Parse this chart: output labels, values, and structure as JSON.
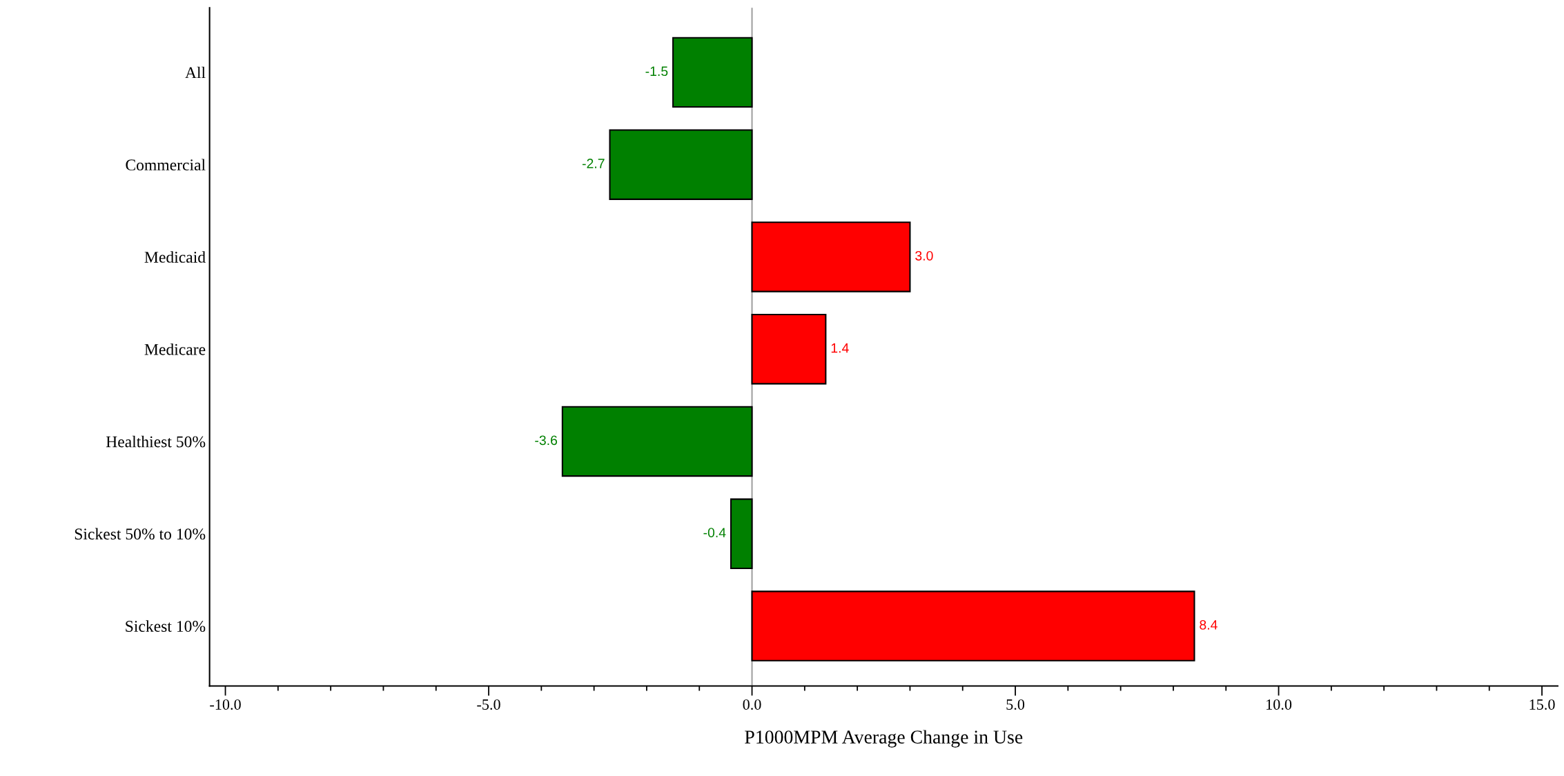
{
  "chart_data": {
    "type": "bar",
    "orientation": "horizontal",
    "xlabel": "P1000MPM Average Change in Use",
    "categories": [
      "All",
      "Commercial",
      "Medicaid",
      "Medicare",
      "Healthiest 50%",
      "Sickest 50% to 10%",
      "Sickest 10%"
    ],
    "values": [
      -1.5,
      -2.7,
      3.0,
      1.4,
      -3.6,
      -0.4,
      8.4
    ],
    "value_labels": [
      "-1.5",
      "-2.7",
      "3.0",
      "1.4",
      "-3.6",
      "-0.4",
      "8.4"
    ],
    "colors": [
      "#008000",
      "#008000",
      "#ff0000",
      "#ff0000",
      "#008000",
      "#008000",
      "#ff0000"
    ],
    "xlim": [
      -10.3,
      15.3
    ],
    "xticks": [
      {
        "value": -10,
        "label": "-10.0"
      },
      {
        "value": -9,
        "label": null
      },
      {
        "value": -8,
        "label": null
      },
      {
        "value": -7,
        "label": null
      },
      {
        "value": -6,
        "label": null
      },
      {
        "value": -5,
        "label": "-5.0"
      },
      {
        "value": -4,
        "label": null
      },
      {
        "value": -3,
        "label": null
      },
      {
        "value": -2,
        "label": null
      },
      {
        "value": -1,
        "label": null
      },
      {
        "value": 0,
        "label": "0.0"
      },
      {
        "value": 1,
        "label": null
      },
      {
        "value": 2,
        "label": null
      },
      {
        "value": 3,
        "label": null
      },
      {
        "value": 4,
        "label": null
      },
      {
        "value": 5,
        "label": "5.0"
      },
      {
        "value": 6,
        "label": null
      },
      {
        "value": 7,
        "label": null
      },
      {
        "value": 8,
        "label": null
      },
      {
        "value": 9,
        "label": null
      },
      {
        "value": 10,
        "label": "10.0"
      },
      {
        "value": 11,
        "label": null
      },
      {
        "value": 12,
        "label": null
      },
      {
        "value": 13,
        "label": null
      },
      {
        "value": 14,
        "label": null
      },
      {
        "value": 15,
        "label": "15.0"
      }
    ],
    "ref_lines": [
      {
        "axis": "x",
        "value": 0,
        "color": "#a0a0a0"
      }
    ],
    "grid": false
  }
}
